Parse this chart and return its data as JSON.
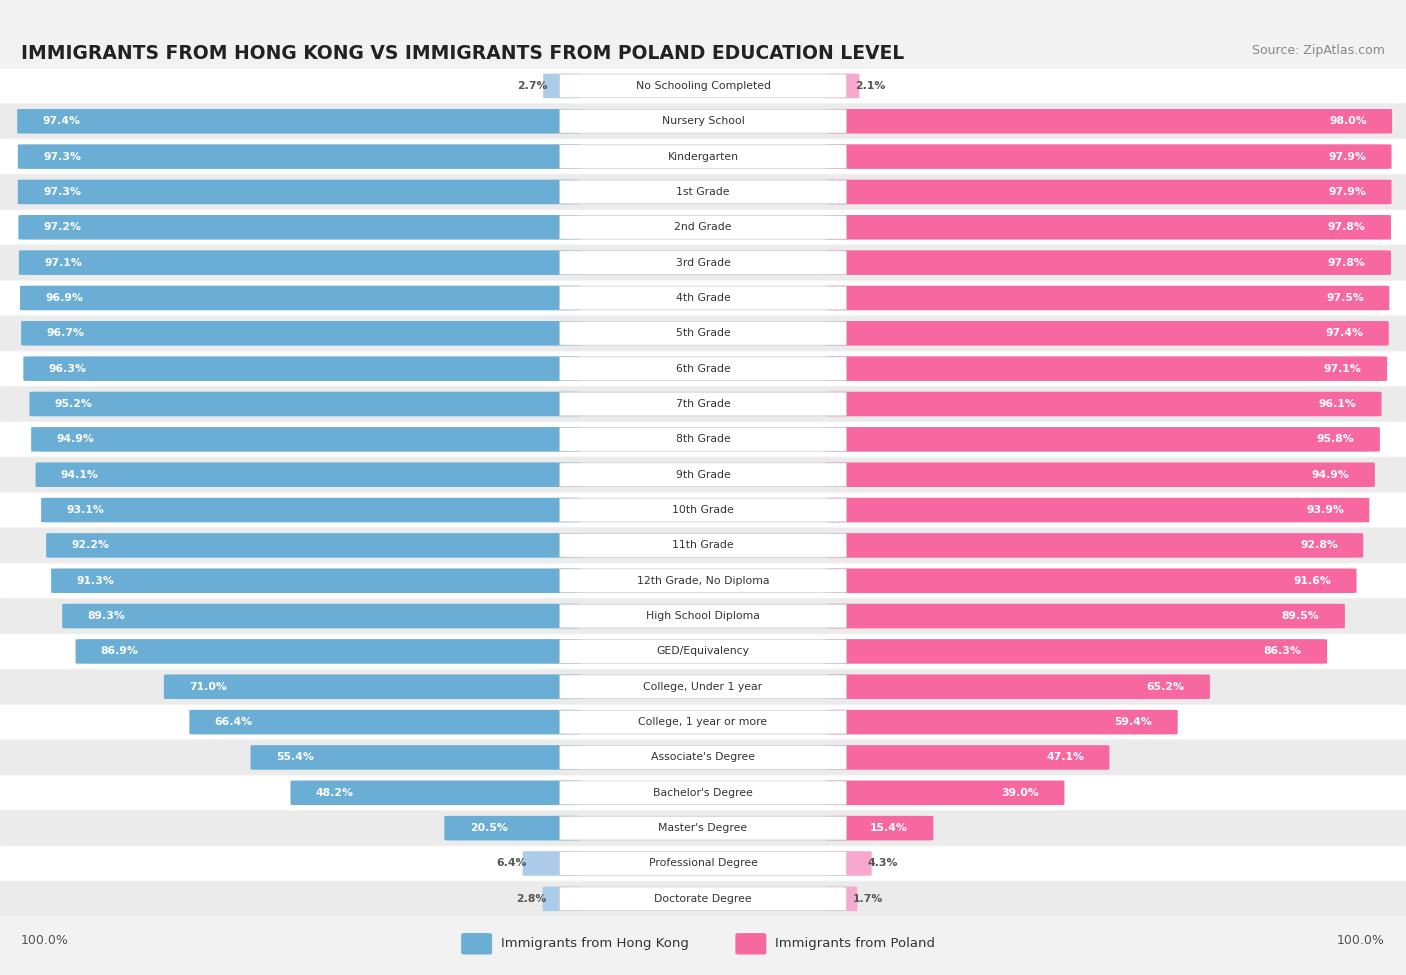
{
  "title": "IMMIGRANTS FROM HONG KONG VS IMMIGRANTS FROM POLAND EDUCATION LEVEL",
  "source": "Source: ZipAtlas.com",
  "categories": [
    "No Schooling Completed",
    "Nursery School",
    "Kindergarten",
    "1st Grade",
    "2nd Grade",
    "3rd Grade",
    "4th Grade",
    "5th Grade",
    "6th Grade",
    "7th Grade",
    "8th Grade",
    "9th Grade",
    "10th Grade",
    "11th Grade",
    "12th Grade, No Diploma",
    "High School Diploma",
    "GED/Equivalency",
    "College, Under 1 year",
    "College, 1 year or more",
    "Associate's Degree",
    "Bachelor's Degree",
    "Master's Degree",
    "Professional Degree",
    "Doctorate Degree"
  ],
  "hong_kong": [
    2.7,
    97.4,
    97.3,
    97.3,
    97.2,
    97.1,
    96.9,
    96.7,
    96.3,
    95.2,
    94.9,
    94.1,
    93.1,
    92.2,
    91.3,
    89.3,
    86.9,
    71.0,
    66.4,
    55.4,
    48.2,
    20.5,
    6.4,
    2.8
  ],
  "poland": [
    2.1,
    98.0,
    97.9,
    97.9,
    97.8,
    97.8,
    97.5,
    97.4,
    97.1,
    96.1,
    95.8,
    94.9,
    93.9,
    92.8,
    91.6,
    89.5,
    86.3,
    65.2,
    59.4,
    47.1,
    39.0,
    15.4,
    4.3,
    1.7
  ],
  "hk_color": "#6aadd5",
  "poland_color": "#f768a1",
  "hk_color_light": "#aacce8",
  "poland_color_light": "#f9a8cd",
  "background_color": "#f2f2f2",
  "row_color_even": "#ffffff",
  "row_color_odd": "#ebebeb",
  "legend_hk": "Immigrants from Hong Kong",
  "legend_poland": "Immigrants from Poland"
}
